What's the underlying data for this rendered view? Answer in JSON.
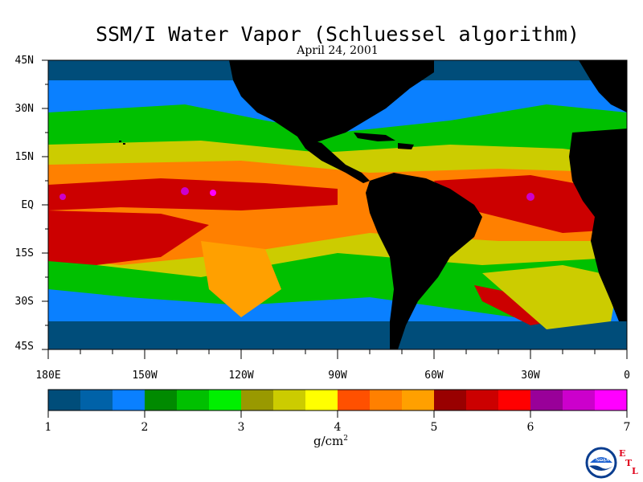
{
  "title": "SSM/I Water Vapor (Schluessel algorithm)",
  "date": "April 24, 2001",
  "y_axis_labels": [
    "45N",
    "30N",
    "15N",
    "EQ",
    "15S",
    "30S",
    "45S"
  ],
  "x_axis_labels": [
    "180E",
    "150W",
    "120W",
    "90W",
    "60W",
    "30W",
    "0"
  ],
  "colorbar": {
    "tick_labels": [
      "1",
      "2",
      "3",
      "4",
      "5",
      "6",
      "7"
    ],
    "units": "g/cm",
    "units_exp": "2",
    "colors": [
      "#004d7a",
      "#0062a8",
      "#0a80ff",
      "#008a00",
      "#00c000",
      "#00f000",
      "#999900",
      "#cccc00",
      "#ffff00",
      "#ff5000",
      "#ff8000",
      "#ffa000",
      "#990000",
      "#cc0000",
      "#ff0000",
      "#990099",
      "#cc00cc",
      "#ff00ff"
    ]
  },
  "logo": {
    "text": "NOAA",
    "letters": [
      "E",
      "T",
      "L"
    ]
  },
  "map_colors": {
    "land": "#000000",
    "ocean_dry": "#004d7a",
    "ocean_mid": "#0062a8",
    "moist_low": "#00c000",
    "moist_mid": "#cccc00",
    "moist_high": "#ff8000",
    "moist_max": "#cc0000"
  }
}
